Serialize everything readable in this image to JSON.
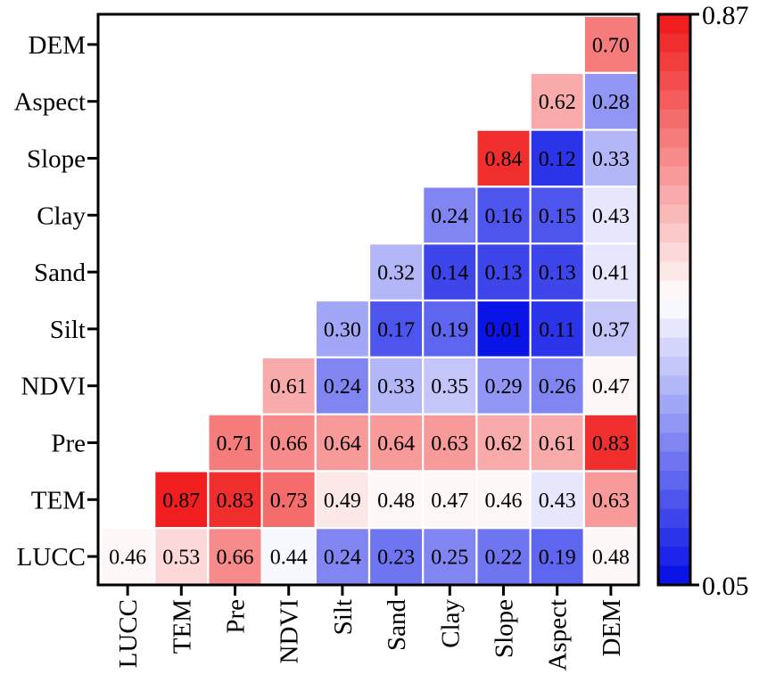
{
  "chart_data": {
    "type": "heatmap",
    "variables": [
      "LUCC",
      "TEM",
      "Pre",
      "NDVI",
      "Silt",
      "Sand",
      "Clay",
      "Slope",
      "Aspect",
      "DEM"
    ],
    "x_labels": [
      "LUCC",
      "TEM",
      "Pre",
      "NDVI",
      "Silt",
      "Sand",
      "Clay",
      "Slope",
      "Aspect",
      "DEM"
    ],
    "y_labels": [
      "DEM",
      "Aspect",
      "Slope",
      "Clay",
      "Sand",
      "Silt",
      "NDVI",
      "Pre",
      "TEM",
      "LUCC"
    ],
    "rows": [
      {
        "label": "DEM",
        "values": [
          null,
          null,
          null,
          null,
          null,
          null,
          null,
          null,
          null,
          "0.70"
        ]
      },
      {
        "label": "Aspect",
        "values": [
          null,
          null,
          null,
          null,
          null,
          null,
          null,
          null,
          "0.62",
          "0.28"
        ]
      },
      {
        "label": "Slope",
        "values": [
          null,
          null,
          null,
          null,
          null,
          null,
          null,
          "0.84",
          "0.12",
          "0.33"
        ]
      },
      {
        "label": "Clay",
        "values": [
          null,
          null,
          null,
          null,
          null,
          null,
          "0.24",
          "0.16",
          "0.15",
          "0.43"
        ]
      },
      {
        "label": "Sand",
        "values": [
          null,
          null,
          null,
          null,
          null,
          "0.32",
          "0.14",
          "0.13",
          "0.13",
          "0.41"
        ]
      },
      {
        "label": "Silt",
        "values": [
          null,
          null,
          null,
          null,
          "0.30",
          "0.17",
          "0.19",
          "0.01",
          "0.11",
          "0.37"
        ]
      },
      {
        "label": "NDVI",
        "values": [
          null,
          null,
          null,
          "0.61",
          "0.24",
          "0.33",
          "0.35",
          "0.29",
          "0.26",
          "0.47"
        ]
      },
      {
        "label": "Pre",
        "values": [
          null,
          null,
          "0.71",
          "0.66",
          "0.64",
          "0.64",
          "0.63",
          "0.62",
          "0.61",
          "0.83"
        ]
      },
      {
        "label": "TEM",
        "values": [
          null,
          "0.87",
          "0.83",
          "0.73",
          "0.49",
          "0.48",
          "0.47",
          "0.46",
          "0.43",
          "0.63"
        ]
      },
      {
        "label": "LUCC",
        "values": [
          "0.46",
          "0.53",
          "0.66",
          "0.44",
          "0.24",
          "0.23",
          "0.25",
          "0.22",
          "0.19",
          "0.48"
        ]
      }
    ],
    "colorbar": {
      "min": 0.05,
      "max": 0.87,
      "min_label": "0.05",
      "max_label": "0.87",
      "low_color": "#0a14e6",
      "mid_color": "#ffffff",
      "high_color": "#f01e1e"
    }
  }
}
